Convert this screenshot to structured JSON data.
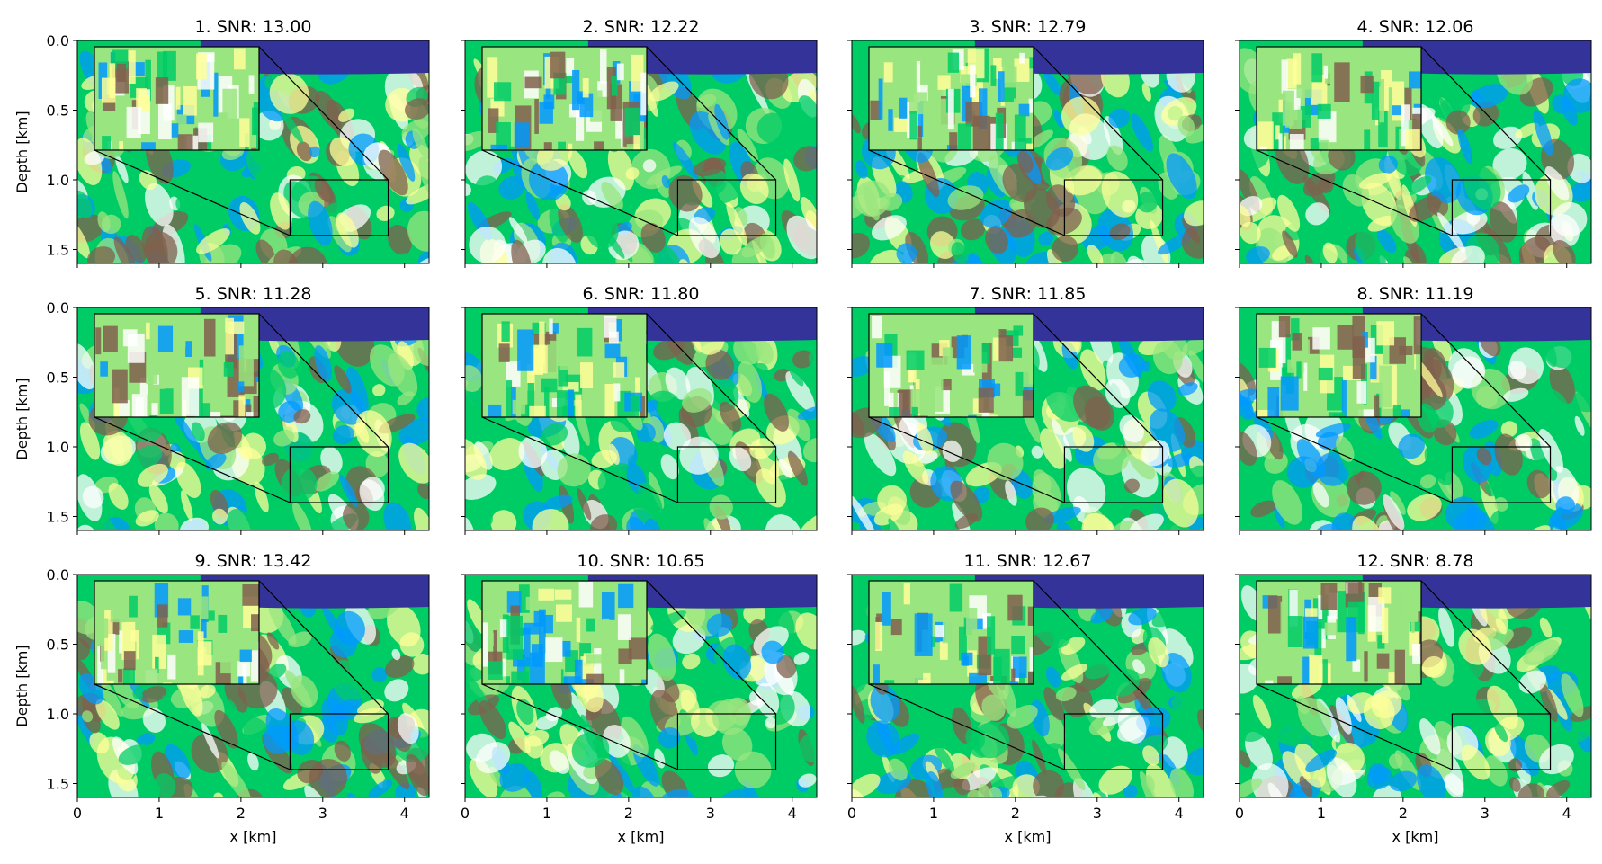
{
  "chart_data": {
    "type": "heatmap",
    "layout": {
      "rows": 3,
      "cols": 4
    },
    "colormap": "terrain",
    "colormap_stops": [
      "#333399",
      "#0099ff",
      "#00cc66",
      "#99e57f",
      "#ffff99",
      "#80604d",
      "#ffffff"
    ],
    "xlabel": "x [km]",
    "ylabel": "Depth [km]",
    "xlim": [
      0,
      4.3
    ],
    "ylim": [
      1.6,
      0.0
    ],
    "xticks": [
      0,
      1,
      2,
      3,
      4
    ],
    "xtick_labels": [
      "0",
      "1",
      "2",
      "3",
      "4"
    ],
    "yticks": [
      0.0,
      0.5,
      1.0,
      1.5
    ],
    "ytick_labels": [
      "0.0",
      "0.5",
      "1.0",
      "1.5"
    ],
    "zoom_region": {
      "x": [
        2.6,
        3.8
      ],
      "depth": [
        1.0,
        1.4
      ]
    },
    "panels": [
      {
        "title": "1. SNR: 13.00",
        "index": 1,
        "snr": 13.0
      },
      {
        "title": "2. SNR: 12.22",
        "index": 2,
        "snr": 12.22
      },
      {
        "title": "3. SNR: 12.79",
        "index": 3,
        "snr": 12.79
      },
      {
        "title": "4. SNR: 12.06",
        "index": 4,
        "snr": 12.06
      },
      {
        "title": "5. SNR: 11.28",
        "index": 5,
        "snr": 11.28
      },
      {
        "title": "6. SNR: 11.80",
        "index": 6,
        "snr": 11.8
      },
      {
        "title": "7. SNR: 11.85",
        "index": 7,
        "snr": 11.85
      },
      {
        "title": "8. SNR: 11.19",
        "index": 8,
        "snr": 11.19
      },
      {
        "title": "9. SNR: 13.42",
        "index": 9,
        "snr": 13.42
      },
      {
        "title": "10. SNR: 10.65",
        "index": 10,
        "snr": 10.65
      },
      {
        "title": "11. SNR: 12.67",
        "index": 11,
        "snr": 12.67
      },
      {
        "title": "12. SNR: 8.78",
        "index": 12,
        "snr": 8.78
      }
    ]
  }
}
